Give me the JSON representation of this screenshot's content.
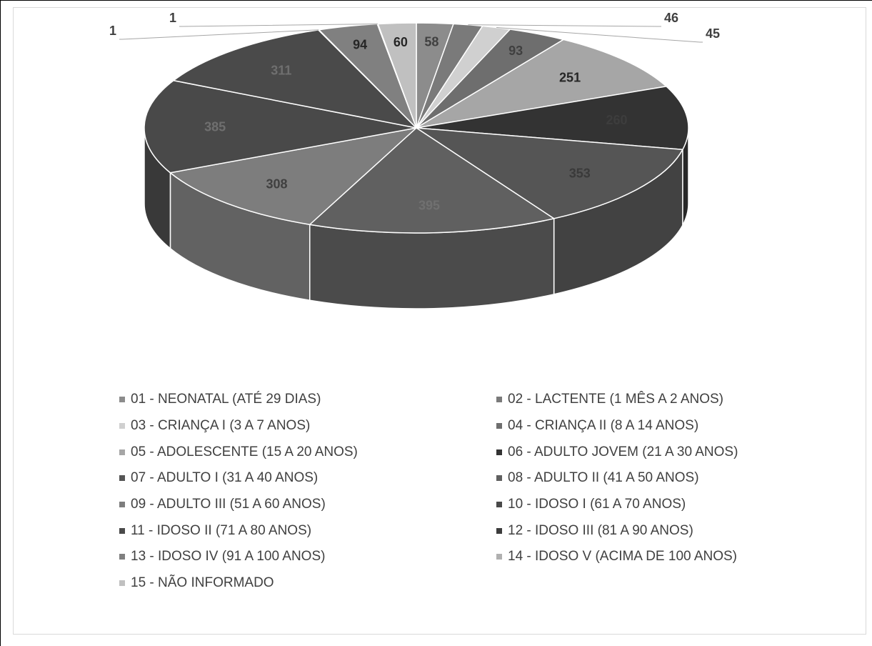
{
  "chart_data": {
    "type": "pie",
    "style": "3d",
    "title": "",
    "categories": [
      "01 - NEONATAL (ATÉ 29 DIAS)",
      "02 - LACTENTE (1 MÊS A 2 ANOS)",
      "03 - CRIANÇA I (3 A 7 ANOS)",
      "04 - CRIANÇA II (8 A 14 ANOS)",
      "05 - ADOLESCENTE (15 A 20 ANOS)",
      "06 - ADULTO JOVEM (21 A 30 ANOS)",
      "07 - ADULTO I (31 A 40 ANOS)",
      "08 - ADULTO II (41 A 50 ANOS)",
      "09 - ADULTO III (51 A 60 ANOS)",
      "10 - IDOSO I (61 A 70 ANOS)",
      "11 - IDOSO II (71 A 80 ANOS)",
      "12 - IDOSO III (81 A 90 ANOS)",
      "13 - IDOSO IV (91 A 100 ANOS)",
      "14 - IDOSO V (ACIMA DE 100 ANOS)",
      "15 - NÃO INFORMADO"
    ],
    "values": [
      58,
      46,
      45,
      93,
      251,
      260,
      353,
      395,
      308,
      385,
      311,
      1,
      94,
      1,
      60
    ],
    "colors": [
      "#8c8c8c",
      "#7a7a7a",
      "#d0d0d0",
      "#6e6e6e",
      "#a6a6a6",
      "#333333",
      "#555555",
      "#606060",
      "#7d7d7d",
      "#494949",
      "#4a4a4a",
      "#3c3c3c",
      "#808080",
      "#b0b0b0",
      "#c0c0c0"
    ],
    "label_colors": [
      "#404040",
      "#404040",
      "#404040",
      "#404040",
      "#262626",
      "#3d3d3d",
      "#3a3a3a",
      "#707070",
      "#404040",
      "#6f6f6f",
      "#6f6f6f",
      "#404040",
      "#262626",
      "#404040",
      "#262626"
    ],
    "legend_position": "bottom"
  }
}
